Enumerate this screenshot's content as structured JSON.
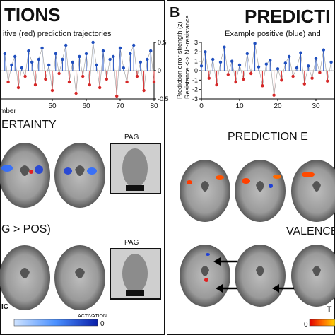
{
  "left_panel": {
    "heading": "TIONS",
    "subtitle": "itive (red) prediction trajectories",
    "xlabel": "mber",
    "section1": "ERTAINTY",
    "section2": "G > POS)",
    "pag_label1": "PAG",
    "pag_label2": "PAG",
    "colorbar_label": "IC",
    "colorbar_sub": "ACTIVATION",
    "colorbar_min": "0",
    "colorbar_max": ""
  },
  "right_panel": {
    "letter": "B",
    "heading": "PREDICTI",
    "subtitle": "Example positive (blue) and",
    "ylabel_line1": "Prediction error strength (z)",
    "ylabel_line2": "Resistance <-> No-resistance",
    "section1": "PREDICTION E",
    "section2": "VALENCE",
    "colorbar_label": "T",
    "colorbar_zero": "0"
  },
  "chart_data": [
    {
      "type": "line",
      "panel": "left",
      "x_ticks": [
        "50",
        "60",
        "70",
        "80"
      ],
      "y_ticks_right": [
        "0.5",
        "0",
        "-0.5"
      ],
      "xlim": [
        35,
        80
      ],
      "ylim": [
        -0.5,
        0.5
      ],
      "series": [
        {
          "color": "#1f4fbf",
          "x": [
            36,
            37,
            38,
            39,
            40,
            41,
            42,
            43,
            44,
            45,
            46,
            47,
            48,
            49,
            50,
            51,
            52,
            53,
            54,
            55,
            56,
            57,
            58,
            59,
            60,
            61,
            62,
            63,
            64,
            65,
            66,
            67,
            68,
            69,
            70,
            71,
            72,
            73,
            74,
            75,
            76,
            77,
            78,
            79,
            80
          ],
          "y": [
            0.3,
            -0.2,
            0.1,
            0.25,
            -0.3,
            0.05,
            -0.1,
            0.35,
            0.15,
            -0.25,
            0.2,
            0.4,
            -0.15,
            0.1,
            -0.35,
            0.3,
            -0.05,
            0.2,
            0.45,
            -0.2,
            0.15,
            -0.4,
            0.25,
            -0.1,
            0.3,
            -0.25,
            0.5,
            0.1,
            -0.3,
            0.35,
            -0.15,
            0.2,
            0.25,
            -0.45,
            0.4,
            0.05,
            -0.2,
            0.3,
            0.45,
            -0.1,
            0.15,
            -0.35,
            0.2,
            0.35,
            -0.2
          ]
        }
      ]
    },
    {
      "type": "line",
      "panel": "right",
      "x_ticks": [
        "0",
        "10",
        "20",
        "30"
      ],
      "y_ticks": [
        "3",
        "2",
        "1",
        "0",
        "-1",
        "-2",
        "-3"
      ],
      "xlim": [
        0,
        35
      ],
      "ylim": [
        -3,
        3
      ],
      "series": [
        {
          "color": "#1f4fbf",
          "x": [
            0,
            1,
            2,
            3,
            4,
            5,
            6,
            7,
            8,
            9,
            10,
            11,
            12,
            13,
            14,
            15,
            16,
            17,
            18,
            19,
            20,
            21,
            22,
            23,
            24,
            25,
            26,
            27,
            28,
            29,
            30,
            31,
            32,
            33,
            34
          ],
          "y": [
            0.5,
            2.0,
            -0.8,
            1.2,
            -1.5,
            0.9,
            2.5,
            -0.4,
            1.0,
            -1.2,
            0.6,
            -0.9,
            1.8,
            -0.3,
            2.9,
            0.4,
            -1.6,
            0.7,
            1.1,
            -2.6,
            0.2,
            -1.0,
            0.8,
            1.5,
            -0.6,
            0.3,
            1.9,
            -1.4,
            0.5,
            -0.8,
            1.3,
            -0.2,
            2.2,
            -1.1,
            0.9
          ]
        }
      ]
    }
  ]
}
